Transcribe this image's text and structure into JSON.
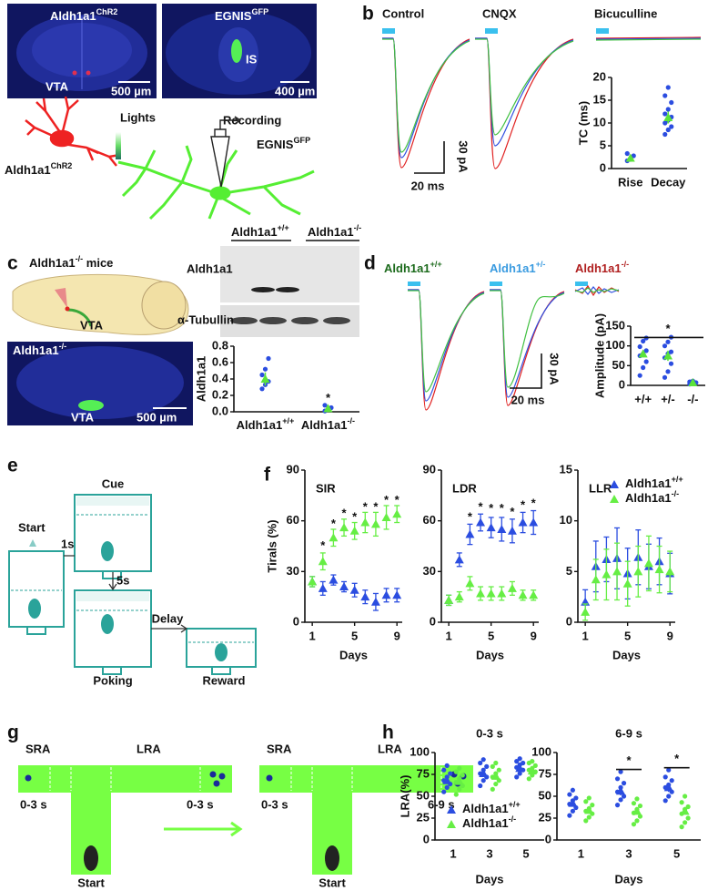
{
  "figure": {
    "labels": [
      "a",
      "b",
      "c",
      "d",
      "e",
      "f",
      "g",
      "h"
    ],
    "a": {
      "image1_label": "Aldh1a1ChR2",
      "image1_region": "VTA",
      "image1_scale": "500 µm",
      "image2_label": "EGNISGFP",
      "image2_region": "IS",
      "image2_scale": "400 µm",
      "lights": "Lights",
      "recording": "Recording",
      "source": "Aldh1a1ChR2",
      "target": "EGNISGFP"
    },
    "b": {
      "conditions": [
        "Control",
        "CNQX",
        "Bicuculline"
      ],
      "scale_y": "30 pA",
      "scale_x": "20 ms"
    },
    "c": {
      "title": "Aldh1a1-/- mice",
      "sagittal_region": "VTA",
      "image_label": "Aldh1a1-/-",
      "image_region": "VTA",
      "image_scale": "500 µm",
      "blot_groups": [
        "Aldh1a1+/+",
        "Aldh1a1-/-"
      ],
      "blot_rows": [
        "Aldh1a1",
        "α-Tubullin"
      ]
    },
    "d": {
      "genotypes": [
        "Aldh1a1+/+",
        "Aldh1a1+/-",
        "Aldh1a1-/-"
      ],
      "scale_y": "30 pA",
      "scale_x": "20 ms"
    },
    "e": {
      "cue": "Cue",
      "start": "Start",
      "delay1": "1s",
      "delay2": "5s",
      "delay": "Delay",
      "poking": "Poking",
      "reward": "Reward"
    },
    "g": {
      "mazes": [
        {
          "left": "SRA",
          "right": "LRA",
          "left_delay": "0-3 s",
          "right_delay": "0-3 s",
          "start": "Start"
        },
        {
          "left": "SRA",
          "right": "LRA",
          "left_delay": "0-3 s",
          "right_delay": "6-9 s",
          "start": "Start"
        }
      ]
    }
  },
  "chart_data": [
    {
      "type": "dot",
      "ylabel": "TC (ms)",
      "categories": [
        "Rise",
        "Decay"
      ],
      "ylim": [
        0,
        20
      ],
      "yticks": [
        0,
        5,
        10,
        15,
        20
      ],
      "point_color": "#2b4de0",
      "mean_color": "#5be33a",
      "series": [
        {
          "values": [
            2.3,
            11.2
          ],
          "errors": [
            0.6,
            1.3
          ],
          "points": [
            [
              1.7,
              2.2,
              2.8,
              3.3,
              2.0
            ],
            [
              7.5,
              8.5,
              9.2,
              10,
              10.6,
              11.3,
              12,
              13,
              14.5,
              16,
              17.8
            ]
          ]
        }
      ]
    },
    {
      "type": "dot",
      "ylabel": "Aldh1a1",
      "categories": [
        "Aldh1a1+/+",
        "Aldh1a1-/-"
      ],
      "ylim": [
        0,
        0.8
      ],
      "yticks": [
        {
          "value": 0,
          "label": "0.0"
        },
        0.2,
        0.4,
        0.6,
        0.8
      ],
      "point_color": "#2b4de0",
      "mean_color": "#5be33a",
      "series": [
        {
          "values": [
            0.4,
            0.04
          ],
          "errors": [
            0.08,
            0.02
          ],
          "points": [
            [
              0.28,
              0.33,
              0.37,
              0.45,
              0.52,
              0.65
            ],
            [
              0.01,
              0.03,
              0.05,
              0.08
            ]
          ]
        }
      ],
      "annotations": [
        {
          "text": "*",
          "x": "Aldh1a1-/-",
          "y": 0.16
        }
      ]
    },
    {
      "type": "dot",
      "ylabel": "Amplitude (pA)",
      "categories": [
        "+/+",
        "+/-",
        "-/-"
      ],
      "ylim": [
        0,
        150
      ],
      "yticks": [
        0,
        50,
        100,
        150
      ],
      "point_color": "#2b4de0",
      "mean_color": "#5be33a",
      "series": [
        {
          "values": [
            80,
            75,
            7
          ],
          "errors": [
            9,
            13,
            2
          ],
          "points": [
            [
              25,
              45,
              60,
              75,
              80,
              88,
              98,
              112,
              120
            ],
            [
              20,
              35,
              55,
              70,
              80,
              85,
              100,
              110,
              122
            ],
            [
              3,
              5,
              7,
              9,
              11
            ]
          ]
        }
      ],
      "annotations": [
        {
          "text": "*",
          "x": "+/-",
          "y": 142
        }
      ]
    },
    {
      "type": "scatter",
      "title": "SIR",
      "ylabel": "Tirals (%)",
      "xlabel": "Days",
      "x": [
        1,
        2,
        3,
        4,
        5,
        6,
        7,
        8,
        9
      ],
      "xlim": [
        0.3,
        9.5
      ],
      "xticks": [
        1,
        5,
        9
      ],
      "ylim": [
        0,
        90
      ],
      "yticks": [
        0,
        30,
        60,
        90
      ],
      "series": [
        {
          "color": "#2b4de0",
          "values": [
            24,
            20,
            25,
            21,
            19,
            15,
            12,
            16,
            16
          ],
          "errors": [
            3,
            4,
            3,
            3,
            4,
            4,
            5,
            4,
            4
          ]
        },
        {
          "color": "#66ee44",
          "values": [
            24,
            36,
            50,
            56,
            54,
            59,
            58,
            62,
            64
          ],
          "errors": [
            3,
            5,
            5,
            5,
            5,
            6,
            7,
            7,
            5
          ]
        }
      ],
      "annotations": [
        {
          "text": "*",
          "x": 2,
          "y": 45
        },
        {
          "text": "*",
          "x": 3,
          "y": 58
        },
        {
          "text": "*",
          "x": 4,
          "y": 64
        },
        {
          "text": "*",
          "x": 5,
          "y": 62
        },
        {
          "text": "*",
          "x": 6,
          "y": 68
        },
        {
          "text": "*",
          "x": 7,
          "y": 68
        },
        {
          "text": "*",
          "x": 8,
          "y": 72
        },
        {
          "text": "*",
          "x": 9,
          "y": 72
        }
      ]
    },
    {
      "type": "scatter",
      "title": "LDR",
      "xlabel": "Days",
      "x": [
        1,
        2,
        3,
        4,
        5,
        6,
        7,
        8,
        9
      ],
      "xlim": [
        0.3,
        9.5
      ],
      "xticks": [
        1,
        5,
        9
      ],
      "ylim": [
        0,
        90
      ],
      "yticks": [
        0,
        30,
        60,
        90
      ],
      "series": [
        {
          "color": "#2b4de0",
          "values": [
            13,
            37,
            52,
            59,
            56,
            55,
            54,
            59,
            59
          ],
          "errors": [
            3,
            4,
            6,
            5,
            6,
            7,
            7,
            6,
            7
          ]
        },
        {
          "color": "#66ee44",
          "values": [
            13,
            15,
            23,
            17,
            17,
            17,
            20,
            16,
            16
          ],
          "errors": [
            3,
            3,
            4,
            4,
            4,
            4,
            4,
            3,
            3
          ]
        }
      ],
      "annotations": [
        {
          "text": "*",
          "x": 3,
          "y": 62
        },
        {
          "text": "*",
          "x": 4,
          "y": 68
        },
        {
          "text": "*",
          "x": 5,
          "y": 67
        },
        {
          "text": "*",
          "x": 6,
          "y": 67
        },
        {
          "text": "*",
          "x": 7,
          "y": 65
        },
        {
          "text": "*",
          "x": 8,
          "y": 69
        },
        {
          "text": "*",
          "x": 9,
          "y": 70
        }
      ]
    },
    {
      "type": "scatter",
      "title": "LLR",
      "xlabel": "Days",
      "x": [
        1,
        2,
        3,
        4,
        5,
        6,
        7,
        8,
        9
      ],
      "xlim": [
        0.3,
        9.5
      ],
      "xticks": [
        1,
        5,
        9
      ],
      "ylim": [
        0,
        15
      ],
      "yticks": [
        0,
        5,
        10,
        15
      ],
      "legend": true,
      "series": [
        {
          "name": "Aldh1a1+/+",
          "color": "#2b4de0",
          "values": [
            2,
            5.5,
            6.2,
            6.3,
            4.8,
            6.4,
            5.5,
            6.0,
            4.8
          ],
          "errors": [
            1.2,
            2.5,
            2.2,
            3.0,
            2.5,
            2.7,
            2.2,
            2.3,
            2.0
          ]
        },
        {
          "name": "Aldh1a1-/-",
          "color": "#66ee44",
          "values": [
            1,
            4.2,
            4.7,
            5.0,
            3.8,
            5.0,
            5.8,
            5.2,
            5.0
          ],
          "errors": [
            0.8,
            2.0,
            2.5,
            2.8,
            2.2,
            2.5,
            2.7,
            2.3,
            2.0
          ]
        }
      ]
    },
    {
      "type": "dot",
      "title": "0-3 s",
      "ylabel": "LRA(%)",
      "xlabel": "Days",
      "categories": [
        "1",
        "3",
        "5"
      ],
      "ylim": [
        0,
        100
      ],
      "yticks": [
        0,
        25,
        50,
        75,
        100
      ],
      "legend": true,
      "series": [
        {
          "name": "Aldh1a1+/+",
          "color": "#2b4de0",
          "values": [
            68,
            76,
            82
          ],
          "errors": [
            4,
            4,
            4
          ],
          "points": [
            [
              55,
              60,
              64,
              68,
              72,
              76,
              80,
              85
            ],
            [
              62,
              68,
              72,
              76,
              80,
              84,
              88,
              92
            ],
            [
              72,
              76,
              80,
              83,
              86,
              88,
              90,
              93
            ]
          ]
        },
        {
          "name": "Aldh1a1-/-",
          "color": "#66ee44",
          "values": [
            67,
            73,
            79
          ],
          "errors": [
            4,
            4,
            3
          ],
          "points": [
            [
              52,
              58,
              62,
              66,
              70,
              74,
              78,
              82
            ],
            [
              58,
              64,
              68,
              72,
              76,
              80,
              84,
              88
            ],
            [
              70,
              74,
              78,
              80,
              82,
              85,
              88,
              90
            ]
          ]
        }
      ]
    },
    {
      "type": "dot",
      "title": "6-9 s",
      "xlabel": "Days",
      "categories": [
        "1",
        "3",
        "5"
      ],
      "ylim": [
        0,
        100
      ],
      "yticks": [
        0,
        25,
        50,
        75,
        100
      ],
      "series": [
        {
          "color": "#2b4de0",
          "values": [
            42,
            56,
            60
          ],
          "errors": [
            4,
            5,
            5
          ],
          "points": [
            [
              28,
              33,
              37,
              41,
              45,
              48,
              52,
              57
            ],
            [
              40,
              46,
              50,
              55,
              60,
              65,
              70,
              78
            ],
            [
              45,
              50,
              55,
              60,
              63,
              68,
              72,
              80
            ]
          ]
        },
        {
          "color": "#66ee44",
          "values": [
            34,
            33,
            33
          ],
          "errors": [
            3,
            3,
            3
          ],
          "points": [
            [
              22,
              26,
              30,
              33,
              36,
              40,
              44,
              48
            ],
            [
              18,
              22,
              27,
              31,
              35,
              39,
              42,
              47
            ],
            [
              15,
              20,
              25,
              30,
              35,
              38,
              43,
              50
            ]
          ]
        }
      ],
      "annotations": [
        {
          "text": "*",
          "x": "3",
          "y": 90
        },
        {
          "text": "*",
          "x": "5",
          "y": 92
        }
      ]
    }
  ]
}
